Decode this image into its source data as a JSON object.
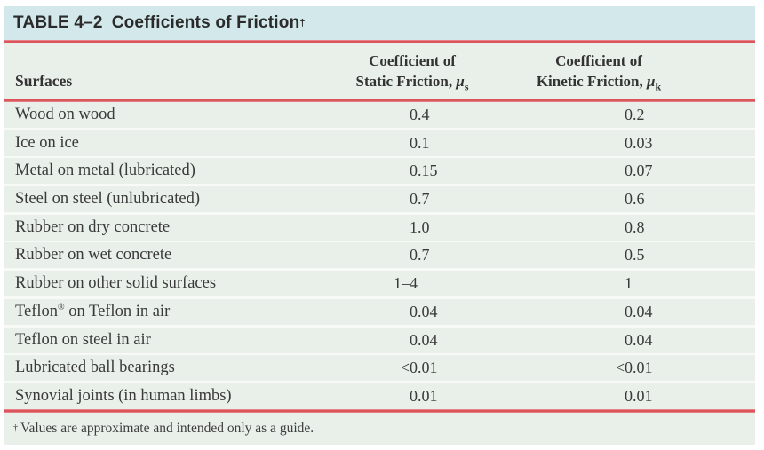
{
  "title": {
    "prefix": "TABLE 4–2",
    "text": "Coefficients of Friction",
    "dagger": "†"
  },
  "header": {
    "surfaces": "Surfaces",
    "static": {
      "line1": "Coefficient of",
      "line2": "Static Friction, ",
      "mu": "μ",
      "sub": "s"
    },
    "kinetic": {
      "line1": "Coefficient of",
      "line2": "Kinetic Friction, ",
      "mu": "μ",
      "sub": "k"
    }
  },
  "rows": [
    {
      "surface": "Wood on wood",
      "static": "0.4",
      "kinetic": "0.2"
    },
    {
      "surface": "Ice on ice",
      "static": "0.1",
      "kinetic": "0.03"
    },
    {
      "surface": "Metal on metal (lubricated)",
      "static": "0.15",
      "kinetic": "0.07"
    },
    {
      "surface": "Steel on steel (unlubricated)",
      "static": "0.7",
      "kinetic": "0.6"
    },
    {
      "surface": "Rubber on dry concrete",
      "static": "1.0",
      "kinetic": "0.8"
    },
    {
      "surface": "Rubber on wet concrete",
      "static": "0.7",
      "kinetic": "0.5"
    },
    {
      "surface": "Rubber on other solid surfaces",
      "static": "1–4",
      "kinetic": "1"
    },
    {
      "surface": "Teflon",
      "surface_sup": "®",
      "surface_rest": " on Teflon in air",
      "static": "0.04",
      "kinetic": "0.04"
    },
    {
      "surface": "Teflon on steel in air",
      "static": "0.04",
      "kinetic": "0.04"
    },
    {
      "surface": "Lubricated ball bearings",
      "static": "<0.01",
      "kinetic": "<0.01"
    },
    {
      "surface": "Synovial joints (in human limbs)",
      "static": "0.01",
      "kinetic": "0.01"
    }
  ],
  "footnote": {
    "dagger": "†",
    "text": "Values are approximate and intended only as a guide."
  },
  "colors": {
    "title_bar": "#d2e8ea",
    "row_band": "#e9f0ea",
    "rule_red": "#db555c"
  }
}
